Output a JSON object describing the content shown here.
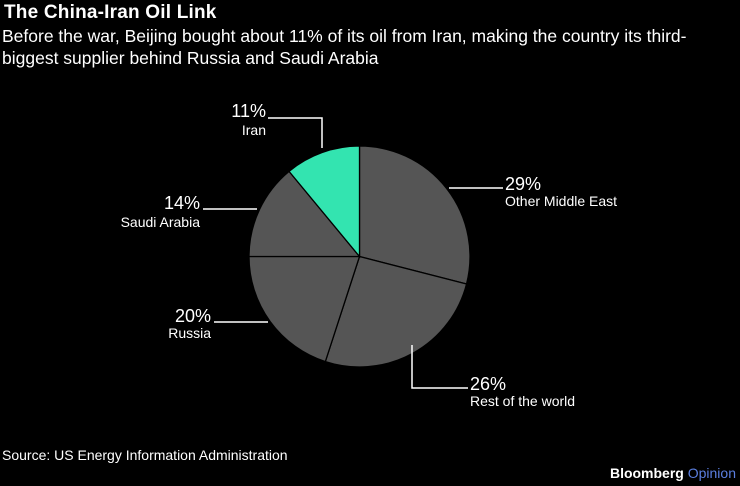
{
  "header": {
    "title": "The China-Iran Oil Link",
    "subtitle": "Before the war, Beijing bought about 11% of its oil from Iran, making the country its third-biggest supplier behind Russia and Saudi Arabia"
  },
  "chart_data": {
    "type": "pie",
    "title": "The China-Iran Oil Link",
    "slices": [
      {
        "label": "Other Middle East",
        "value": 29,
        "value_label": "29%",
        "color": "#555555"
      },
      {
        "label": "Rest of the world",
        "value": 26,
        "value_label": "26%",
        "color": "#555555"
      },
      {
        "label": "Russia",
        "value": 20,
        "value_label": "20%",
        "color": "#555555"
      },
      {
        "label": "Saudi Arabia",
        "value": 14,
        "value_label": "14%",
        "color": "#555555"
      },
      {
        "label": "Iran",
        "value": 11,
        "value_label": "11%",
        "color": "#33e4b0"
      }
    ],
    "slice_border_color": "#000000"
  },
  "footer": {
    "source": "Source: US Energy Information Administration",
    "brand": "Bloomberg",
    "brand_accent": "Opinion"
  }
}
